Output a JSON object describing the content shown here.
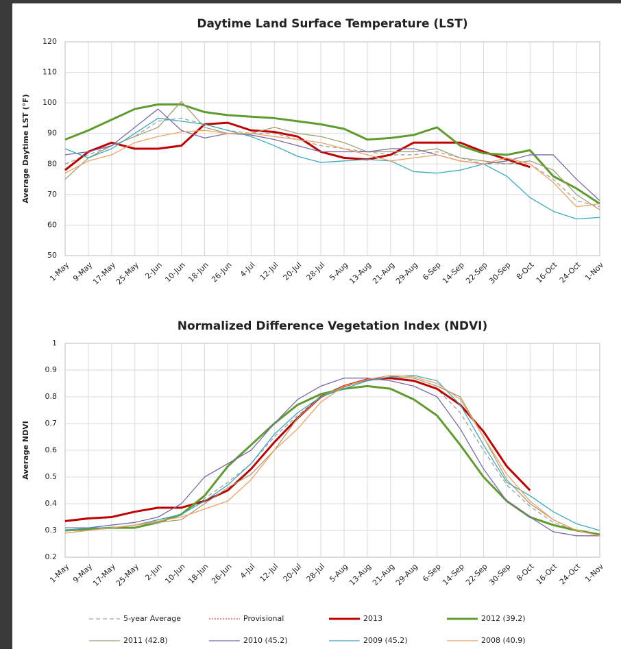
{
  "chart_data": [
    {
      "type": "line",
      "title": "Daytime Land Surface Temperature (LST)",
      "y_label": "Average  Daytime  LST  (°F)",
      "categories": [
        "1-May",
        "9-May",
        "17-May",
        "25-May",
        "2-Jun",
        "10-Jun",
        "18-Jun",
        "26-Jun",
        "4-Jul",
        "12-Jul",
        "20-Jul",
        "28-Jul",
        "5-Aug",
        "13-Aug",
        "21-Aug",
        "29-Aug",
        "6-Sep",
        "14-Sep",
        "22-Sep",
        "30-Sep",
        "8-Oct",
        "16-Oct",
        "24-Oct",
        "1-Nov"
      ],
      "ylim": [
        50,
        120
      ],
      "yticks": [
        50,
        60,
        70,
        80,
        90,
        100,
        110,
        120
      ],
      "grid": true,
      "series": [
        {
          "name": "5-year Average",
          "color": "#a0a0a0",
          "style": "dashed",
          "linewidth": 1.3,
          "values": [
            80,
            83,
            86,
            89,
            94,
            95,
            93,
            91,
            90,
            90,
            88,
            86,
            85,
            84,
            83,
            83,
            84,
            82,
            80,
            80,
            80,
            75,
            68,
            66
          ]
        },
        {
          "name": "2013",
          "color": "#c00000",
          "style": "solid",
          "linewidth": 3,
          "values": [
            78,
            84,
            87,
            85,
            85,
            86,
            93,
            93.5,
            91,
            90.5,
            89,
            84,
            82,
            81.5,
            83,
            87,
            87,
            87,
            84,
            81.5,
            79,
            null,
            null,
            null
          ]
        },
        {
          "name": "2012  (39.2)",
          "color": "#5e9c2e",
          "style": "solid",
          "linewidth": 3,
          "values": [
            88,
            91,
            94.5,
            98,
            99.5,
            99.5,
            97,
            96,
            95.5,
            95,
            94,
            93,
            91.5,
            88,
            88.5,
            89.5,
            92,
            86,
            83.5,
            83,
            84.5,
            76,
            72,
            67
          ]
        },
        {
          "name": "2011  (42.8)",
          "color": "#a39e74",
          "style": "solid",
          "linewidth": 1.3,
          "values": [
            75,
            82,
            86,
            89,
            92,
            100.5,
            92,
            90,
            90,
            92,
            90,
            89,
            87,
            84,
            84,
            84,
            85,
            82,
            81,
            80,
            81,
            78,
            70,
            65
          ]
        },
        {
          "name": "2010  (45.2)",
          "color": "#7b68a8",
          "style": "solid",
          "linewidth": 1.3,
          "values": [
            83,
            84,
            86,
            92,
            98,
            91,
            88.5,
            90,
            89.5,
            88,
            86,
            84,
            84,
            84,
            85,
            85,
            83,
            81,
            80,
            81,
            83,
            83,
            75,
            68
          ]
        },
        {
          "name": "2009  (45.2)",
          "color": "#3aa9bf",
          "style": "solid",
          "linewidth": 1.3,
          "values": [
            85,
            82,
            85,
            90,
            95,
            94,
            93,
            91,
            89,
            86,
            82.5,
            80.5,
            81,
            81.5,
            81,
            77.5,
            77,
            78,
            80,
            76,
            69,
            64.5,
            62,
            62.5
          ]
        },
        {
          "name": "2008  (40.9)",
          "color": "#f0a060",
          "style": "solid",
          "linewidth": 1.3,
          "values": [
            77,
            81,
            83,
            87,
            89,
            90.5,
            91,
            90,
            90,
            89,
            88,
            87,
            85,
            83,
            81,
            82,
            83,
            81,
            80,
            82,
            80,
            74,
            66,
            67
          ]
        }
      ]
    },
    {
      "type": "line",
      "title": "Normalized Difference Vegetation Index (NDVI)",
      "y_label": "Average  NDVI",
      "categories": [
        "1-May",
        "9-May",
        "17-May",
        "25-May",
        "2-Jun",
        "10-Jun",
        "18-Jun",
        "26-Jun",
        "4-Jul",
        "12-Jul",
        "20-Jul",
        "28-Jul",
        "5-Aug",
        "13-Aug",
        "21-Aug",
        "29-Aug",
        "6-Sep",
        "14-Sep",
        "22-Sep",
        "30-Sep",
        "8-Oct",
        "16-Oct",
        "24-Oct",
        "1-Nov"
      ],
      "ylim": [
        0.2,
        1
      ],
      "yticks": [
        0.2,
        0.3,
        0.4,
        0.5,
        0.6,
        0.7,
        0.8,
        0.9,
        1
      ],
      "grid": true,
      "series": [
        {
          "name": "5-year Average",
          "color": "#a0a0a0",
          "style": "dashed",
          "linewidth": 1.3,
          "values": [
            0.3,
            0.3,
            0.31,
            0.32,
            0.34,
            0.36,
            0.42,
            0.48,
            0.55,
            0.65,
            0.73,
            0.8,
            0.84,
            0.86,
            0.87,
            0.86,
            0.83,
            0.74,
            0.6,
            0.47,
            0.39,
            0.33,
            0.3,
            0.28
          ]
        },
        {
          "name": "Provisional",
          "color": "#e04040",
          "style": "dotted",
          "linewidth": 1.3,
          "values": [
            null,
            null,
            null,
            null,
            null,
            null,
            null,
            null,
            null,
            null,
            null,
            null,
            null,
            null,
            null,
            null,
            null,
            null,
            null,
            null,
            null,
            null,
            null,
            null
          ]
        },
        {
          "name": "2013",
          "color": "#c00000",
          "style": "solid",
          "linewidth": 3,
          "values": [
            0.335,
            0.345,
            0.35,
            0.37,
            0.385,
            0.385,
            0.41,
            0.45,
            0.53,
            0.63,
            0.72,
            0.8,
            0.84,
            0.865,
            0.87,
            0.86,
            0.83,
            0.77,
            0.67,
            0.54,
            0.45,
            null,
            null,
            null
          ]
        },
        {
          "name": "2012  (39.2)",
          "color": "#5e9c2e",
          "style": "solid",
          "linewidth": 3,
          "values": [
            0.3,
            0.305,
            0.31,
            0.31,
            0.33,
            0.36,
            0.43,
            0.54,
            0.62,
            0.7,
            0.77,
            0.81,
            0.83,
            0.84,
            0.83,
            0.79,
            0.73,
            0.62,
            0.5,
            0.41,
            0.35,
            0.32,
            0.3,
            0.285
          ]
        },
        {
          "name": "2011  (42.8)",
          "color": "#a39e74",
          "style": "solid",
          "linewidth": 1.3,
          "values": [
            0.29,
            0.3,
            0.31,
            0.32,
            0.33,
            0.34,
            0.4,
            0.46,
            0.51,
            0.6,
            0.72,
            0.8,
            0.84,
            0.86,
            0.875,
            0.87,
            0.84,
            0.8,
            0.65,
            0.49,
            0.4,
            0.34,
            0.3,
            0.28
          ]
        },
        {
          "name": "2010  (45.2)",
          "color": "#7b68a8",
          "style": "solid",
          "linewidth": 1.3,
          "values": [
            0.31,
            0.31,
            0.32,
            0.33,
            0.35,
            0.4,
            0.5,
            0.55,
            0.6,
            0.7,
            0.79,
            0.84,
            0.87,
            0.87,
            0.86,
            0.84,
            0.8,
            0.68,
            0.53,
            0.41,
            0.35,
            0.295,
            0.28,
            0.28
          ]
        },
        {
          "name": "2009  (45.2)",
          "color": "#3aa9bf",
          "style": "solid",
          "linewidth": 1.3,
          "values": [
            0.3,
            0.31,
            0.31,
            0.32,
            0.34,
            0.36,
            0.41,
            0.47,
            0.55,
            0.66,
            0.74,
            0.8,
            0.83,
            0.86,
            0.875,
            0.88,
            0.86,
            0.77,
            0.62,
            0.48,
            0.43,
            0.37,
            0.325,
            0.3
          ]
        },
        {
          "name": "2008  (40.9)",
          "color": "#f0a060",
          "style": "solid",
          "linewidth": 1.3,
          "values": [
            0.29,
            0.3,
            0.31,
            0.32,
            0.335,
            0.35,
            0.38,
            0.41,
            0.49,
            0.6,
            0.68,
            0.78,
            0.84,
            0.865,
            0.88,
            0.875,
            0.85,
            0.79,
            0.65,
            0.51,
            0.41,
            0.34,
            0.3,
            0.28
          ]
        }
      ]
    }
  ]
}
